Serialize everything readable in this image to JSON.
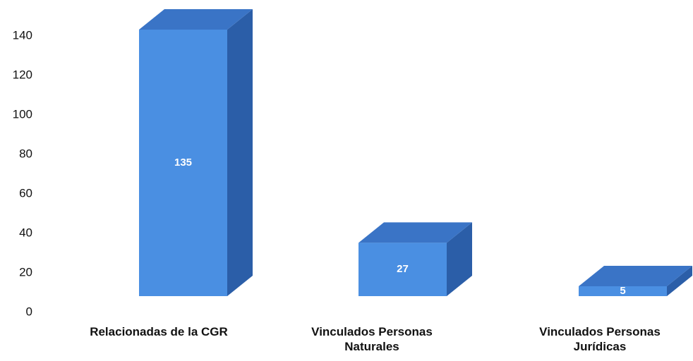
{
  "chart_data": {
    "type": "bar3d",
    "categories": [
      "Relacionadas de la CGR",
      "Vinculados Personas Naturales",
      "Vinculados Personas Jurídicas"
    ],
    "values": [
      135,
      27,
      5
    ],
    "color": "#4a8fe2",
    "ylim": [
      0,
      140
    ],
    "yticks": [
      0,
      20,
      40,
      60,
      80,
      100,
      120,
      140
    ],
    "grid": false
  }
}
